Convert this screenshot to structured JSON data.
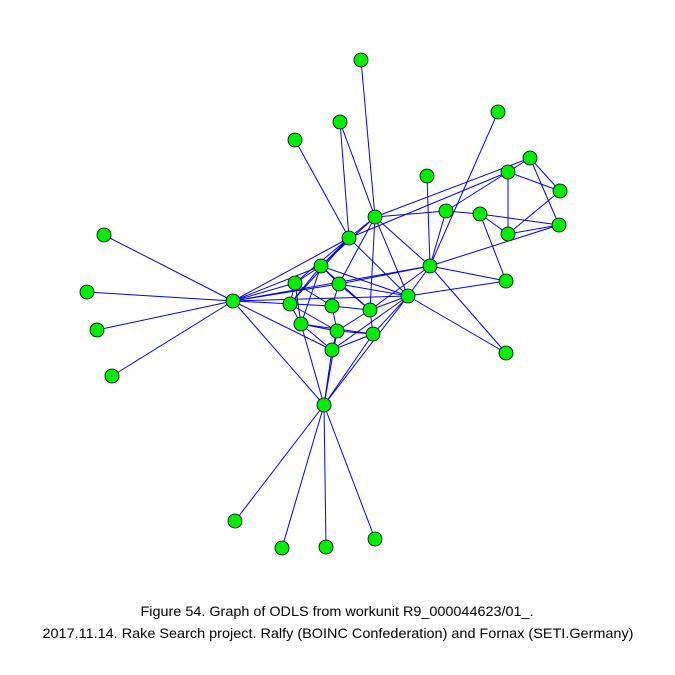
{
  "caption": {
    "line1": "Figure 54. Graph of ODLS from workunit R9_000044623/01_.",
    "line2": "2017.11.14. Rake Search project. Ralfy (BOINC Confederation) and Fornax (SETI.Germany)"
  }
}
